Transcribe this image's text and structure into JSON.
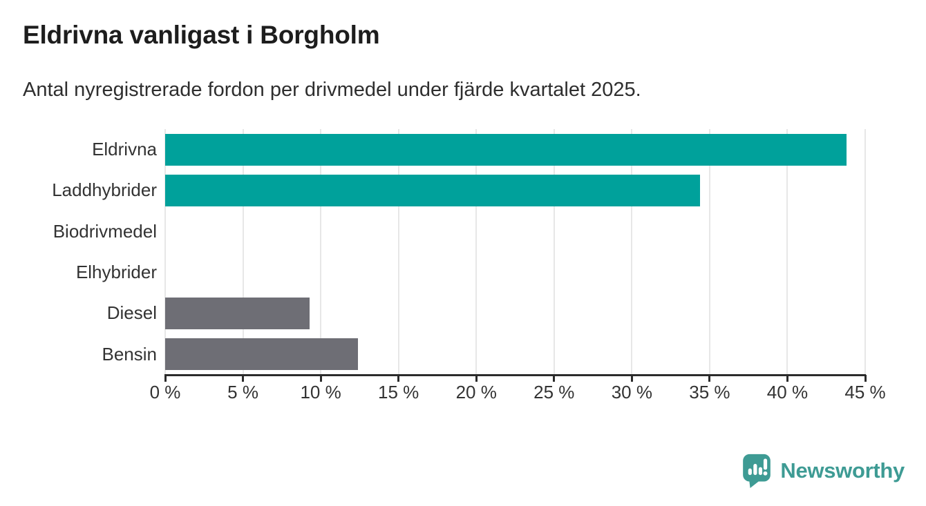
{
  "header": {
    "title": "Eldrivna vanligast i Borgholm",
    "subtitle": "Antal nyregistrerade fordon per drivmedel under fjärde kvartalet 2025."
  },
  "chart_data": {
    "type": "bar",
    "orientation": "horizontal",
    "title": "Eldrivna vanligast i Borgholm",
    "subtitle": "Antal nyregistrerade fordon per drivmedel under fjärde kvartalet 2025.",
    "categories": [
      "Eldrivna",
      "Laddhybrider",
      "Biodrivmedel",
      "Elhybrider",
      "Diesel",
      "Bensin"
    ],
    "values": [
      43.8,
      34.4,
      0,
      0,
      9.3,
      12.4
    ],
    "unit": "%",
    "xlim": [
      0,
      45
    ],
    "x_tick_values": [
      0,
      5,
      10,
      15,
      20,
      25,
      30,
      35,
      40,
      45
    ],
    "x_ticks": [
      "0 %",
      "5 %",
      "10 %",
      "15 %",
      "20 %",
      "25 %",
      "30 %",
      "35 %",
      "40 %",
      "45 %"
    ],
    "grid": true,
    "legend": "none",
    "bar_colors": [
      "#00a19b",
      "#00a19b",
      null,
      null,
      "#6e6e75",
      "#6e6e75"
    ],
    "colors": {
      "accent_teal": "#00a19b",
      "neutral_gray": "#6e6e75",
      "axis": "#2b2b2b",
      "gridline": "#e7e7e7",
      "text": "#333333"
    }
  },
  "footer": {
    "brand": "Newsworthy",
    "brand_color": "#3e9b94",
    "logo_icon": "newsworthy-speech-bubble-bar-chart-icon"
  }
}
